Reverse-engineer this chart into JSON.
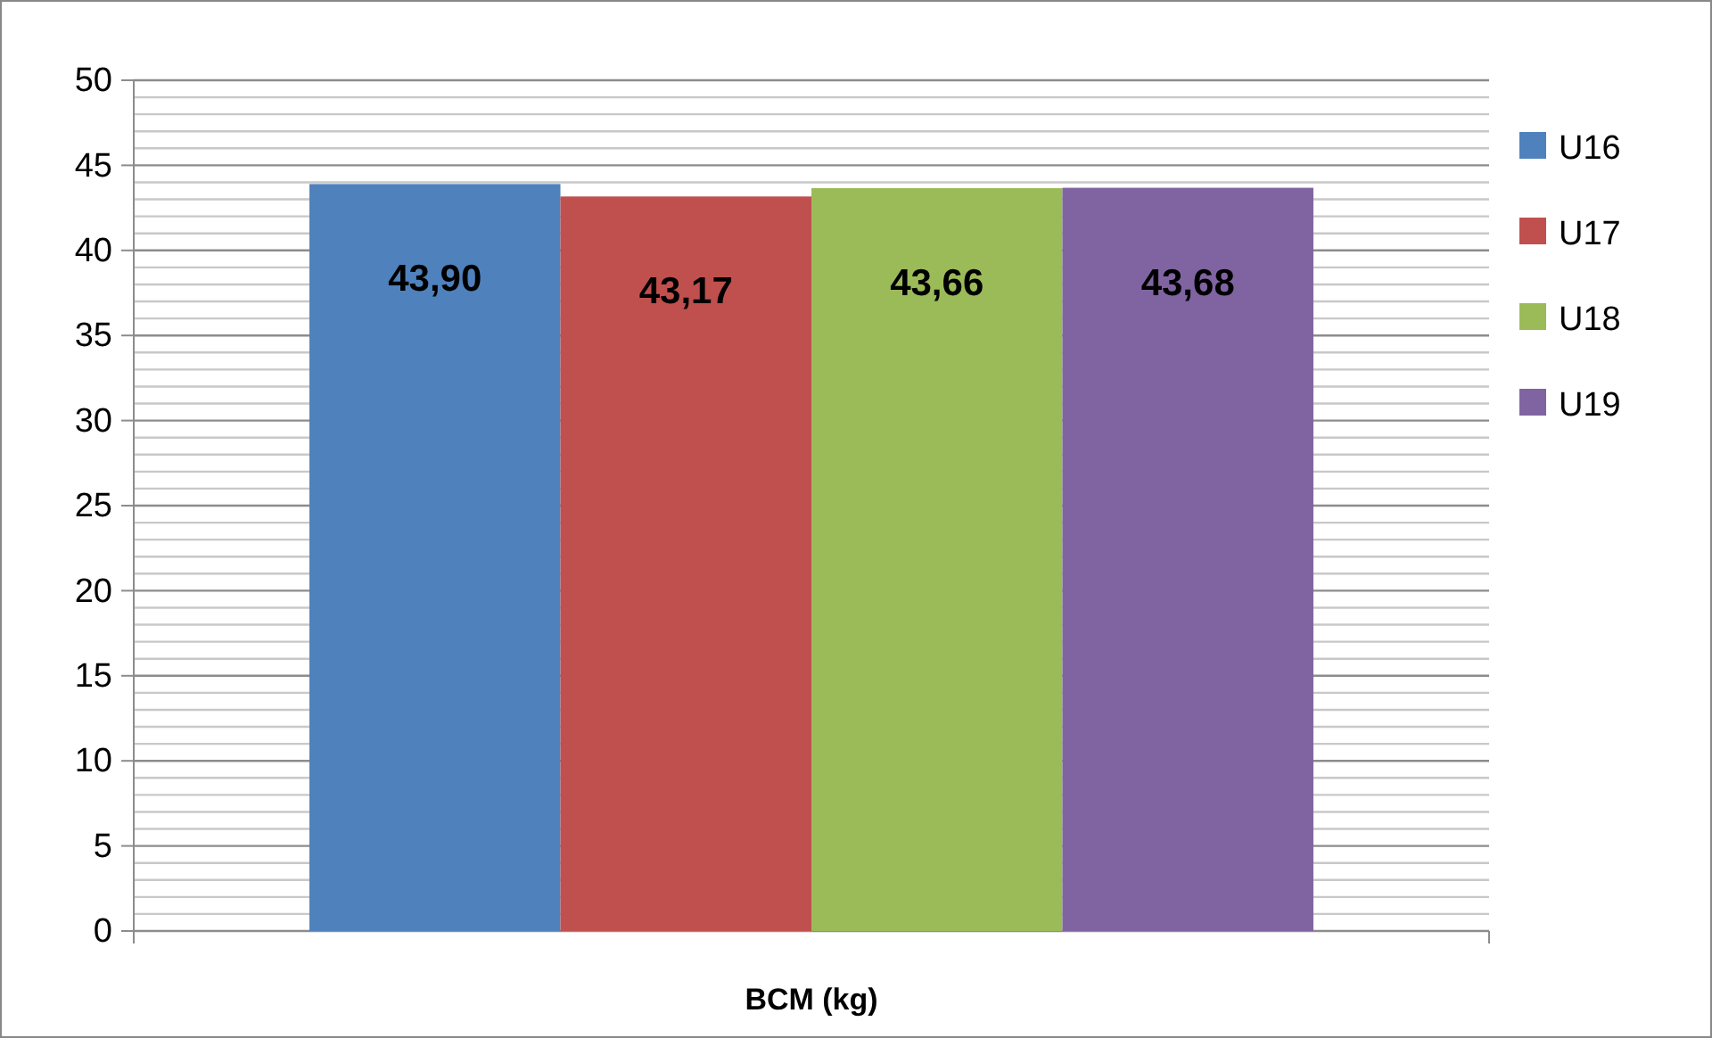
{
  "chart_data": {
    "type": "bar",
    "xlabel": "BCM (kg)",
    "categories": [
      null
    ],
    "series": [
      {
        "name": "U16",
        "color": "#4f81bd",
        "values": [
          43.9
        ],
        "value_labels": [
          "43,90"
        ]
      },
      {
        "name": "U17",
        "color": "#c0504d",
        "values": [
          43.17
        ],
        "value_labels": [
          "43,17"
        ]
      },
      {
        "name": "U18",
        "color": "#9bbb59",
        "values": [
          43.66
        ],
        "value_labels": [
          "43,66"
        ]
      },
      {
        "name": "U19",
        "color": "#8064a2",
        "values": [
          43.68
        ],
        "value_labels": [
          "43,68"
        ]
      }
    ],
    "ylim": [
      0,
      50
    ],
    "yticks": [
      0,
      {
        "value": 1,
        "label": null
      },
      {
        "value": 2,
        "label": null
      },
      {
        "value": 3,
        "label": null
      },
      {
        "value": 4,
        "label": null
      },
      5,
      {
        "value": 6,
        "label": null
      },
      {
        "value": 7,
        "label": null
      },
      {
        "value": 8,
        "label": null
      },
      {
        "value": 9,
        "label": null
      },
      10,
      {
        "value": 11,
        "label": null
      },
      {
        "value": 12,
        "label": null
      },
      {
        "value": 13,
        "label": null
      },
      {
        "value": 14,
        "label": null
      },
      15,
      {
        "value": 16,
        "label": null
      },
      {
        "value": 17,
        "label": null
      },
      {
        "value": 18,
        "label": null
      },
      {
        "value": 19,
        "label": null
      },
      20,
      {
        "value": 21,
        "label": null
      },
      {
        "value": 22,
        "label": null
      },
      {
        "value": 23,
        "label": null
      },
      {
        "value": 24,
        "label": null
      },
      25,
      {
        "value": 26,
        "label": null
      },
      {
        "value": 27,
        "label": null
      },
      {
        "value": 28,
        "label": null
      },
      {
        "value": 29,
        "label": null
      },
      30,
      {
        "value": 31,
        "label": null
      },
      {
        "value": 32,
        "label": null
      },
      {
        "value": 33,
        "label": null
      },
      {
        "value": 34,
        "label": null
      },
      35,
      {
        "value": 36,
        "label": null
      },
      {
        "value": 37,
        "label": null
      },
      {
        "value": 38,
        "label": null
      },
      {
        "value": 39,
        "label": null
      },
      40,
      {
        "value": 41,
        "label": null
      },
      {
        "value": 42,
        "label": null
      },
      {
        "value": 43,
        "label": null
      },
      {
        "value": 44,
        "label": null
      },
      45,
      {
        "value": 46,
        "label": null
      },
      {
        "value": 47,
        "label": null
      },
      {
        "value": 48,
        "label": null
      },
      {
        "value": 49,
        "label": null
      },
      50
    ],
    "grid": true,
    "legend": "right"
  }
}
